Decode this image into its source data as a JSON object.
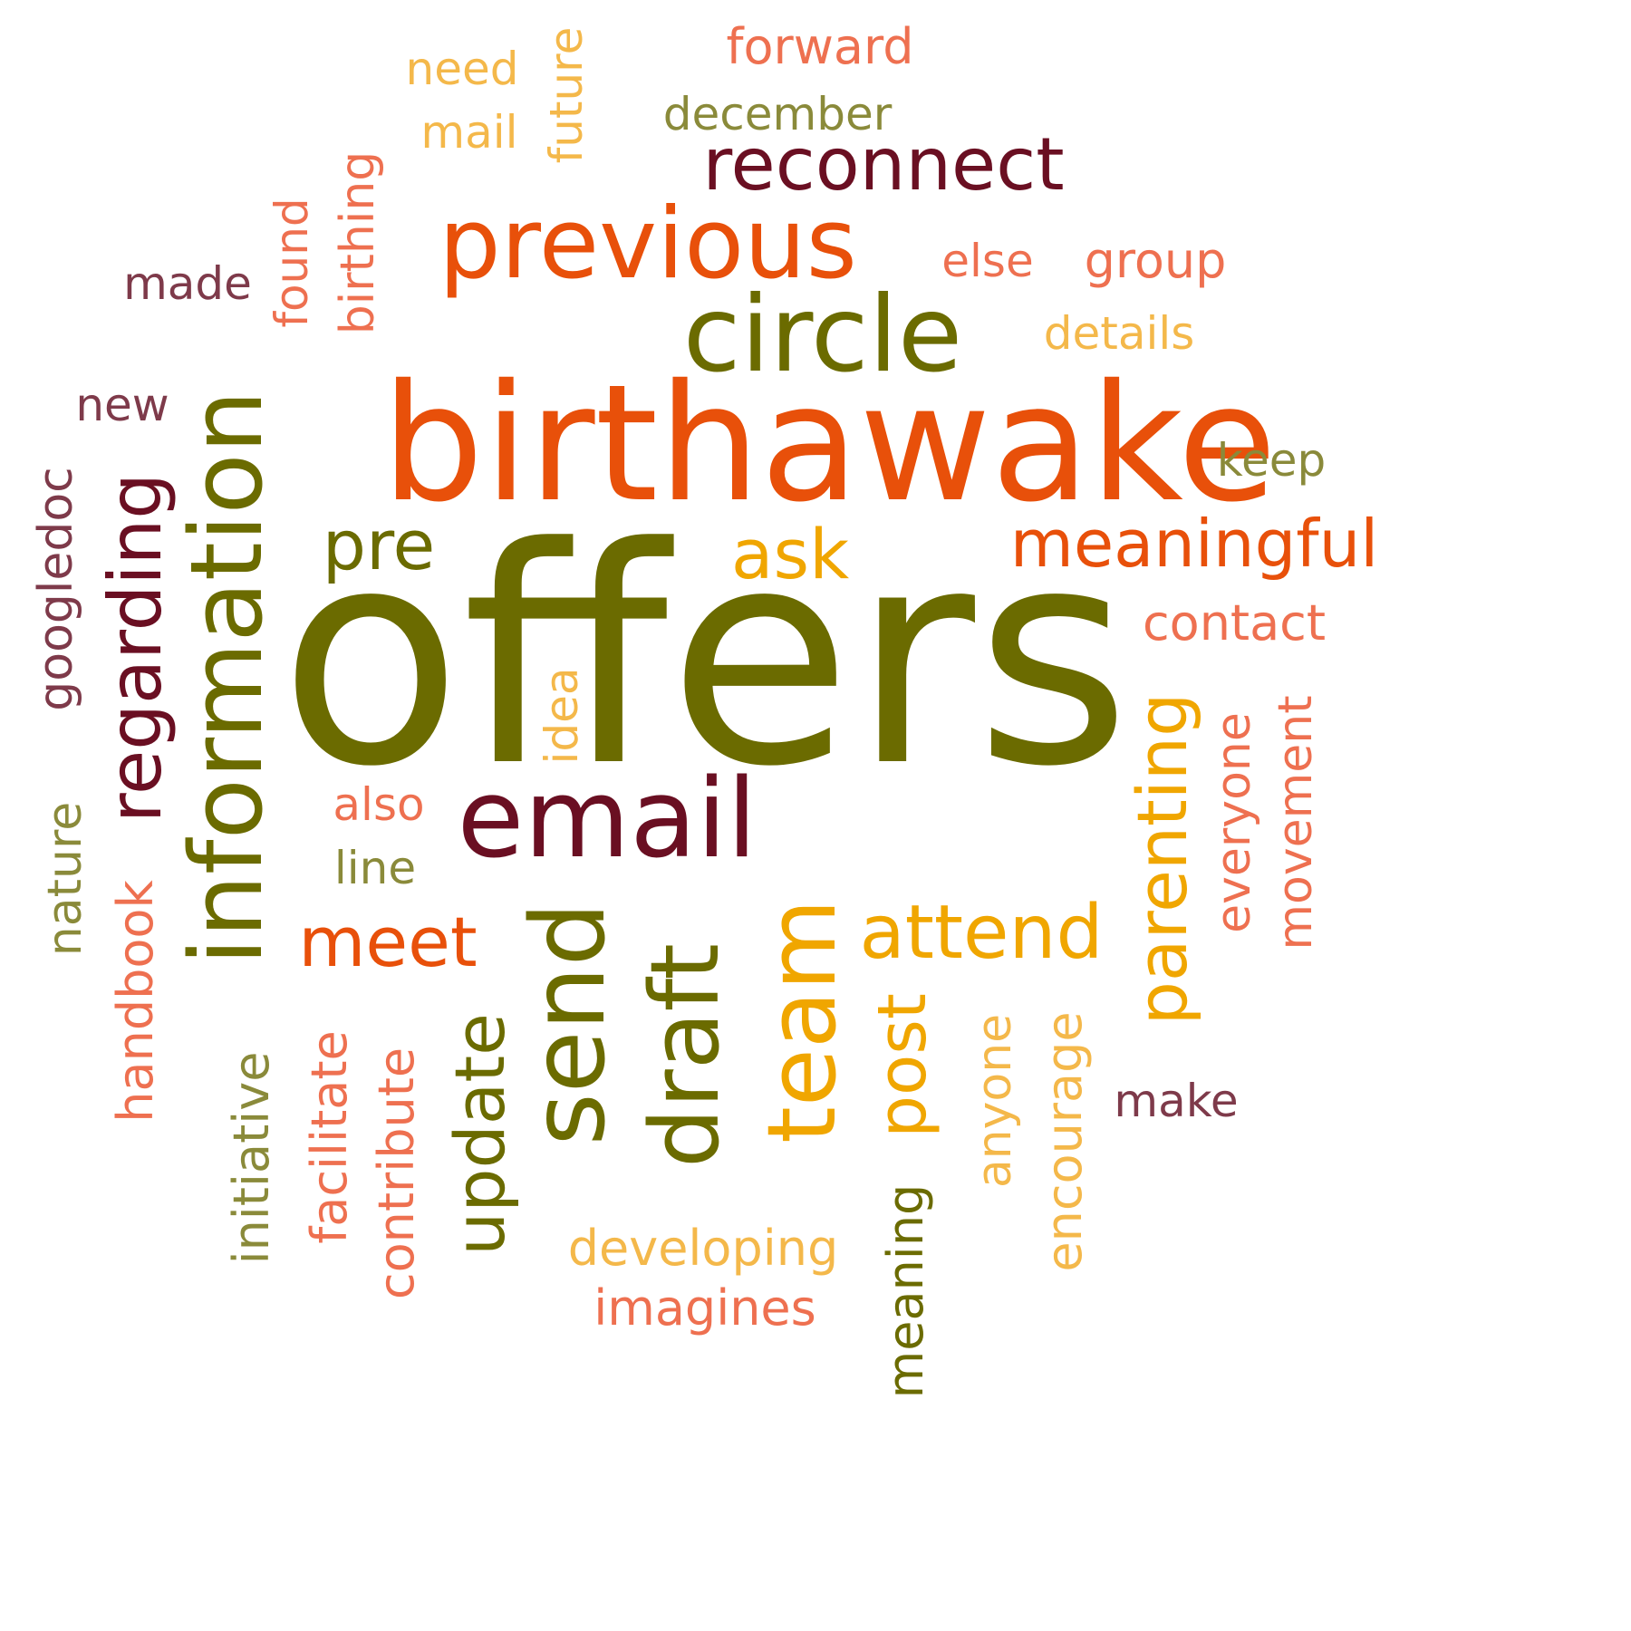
{
  "palette": {
    "olive": "#6b6b00",
    "orange": "#e8500a",
    "maroon": "#6a0f22",
    "gold": "#f0a600",
    "light_gold": "#f4b84a",
    "salmon": "#ee7050",
    "plum": "#7e3a4a",
    "sage": "#8a8a3a"
  },
  "words": [
    {
      "text": "offers",
      "color_key": "olive",
      "weight": 1.0,
      "vertical": false
    },
    {
      "text": "birthawake",
      "color_key": "orange",
      "weight": 0.62,
      "vertical": false
    },
    {
      "text": "email",
      "color_key": "maroon",
      "weight": 0.38,
      "vertical": false
    },
    {
      "text": "circle",
      "color_key": "olive",
      "weight": 0.36,
      "vertical": false
    },
    {
      "text": "previous",
      "color_key": "orange",
      "weight": 0.34,
      "vertical": false
    },
    {
      "text": "information",
      "color_key": "olive",
      "weight": 0.34,
      "vertical": true
    },
    {
      "text": "send",
      "color_key": "olive",
      "weight": 0.34,
      "vertical": true
    },
    {
      "text": "draft",
      "color_key": "olive",
      "weight": 0.32,
      "vertical": true
    },
    {
      "text": "team",
      "color_key": "gold",
      "weight": 0.32,
      "vertical": true
    },
    {
      "text": "reconnect",
      "color_key": "maroon",
      "weight": 0.26,
      "vertical": false
    },
    {
      "text": "regarding",
      "color_key": "maroon",
      "weight": 0.26,
      "vertical": true
    },
    {
      "text": "attend",
      "color_key": "gold",
      "weight": 0.26,
      "vertical": false
    },
    {
      "text": "meaningful",
      "color_key": "orange",
      "weight": 0.24,
      "vertical": false
    },
    {
      "text": "parenting",
      "color_key": "gold",
      "weight": 0.24,
      "vertical": true
    },
    {
      "text": "update",
      "color_key": "olive",
      "weight": 0.24,
      "vertical": true
    },
    {
      "text": "meet",
      "color_key": "orange",
      "weight": 0.22,
      "vertical": false
    },
    {
      "text": "post",
      "color_key": "gold",
      "weight": 0.22,
      "vertical": true
    },
    {
      "text": "ask",
      "color_key": "gold",
      "weight": 0.22,
      "vertical": false
    },
    {
      "text": "pre",
      "color_key": "olive",
      "weight": 0.22,
      "vertical": false
    },
    {
      "text": "forward",
      "color_key": "salmon",
      "weight": 0.17,
      "vertical": false
    },
    {
      "text": "developing",
      "color_key": "light_gold",
      "weight": 0.17,
      "vertical": false
    },
    {
      "text": "imagines",
      "color_key": "salmon",
      "weight": 0.17,
      "vertical": false
    },
    {
      "text": "contact",
      "color_key": "salmon",
      "weight": 0.17,
      "vertical": false
    },
    {
      "text": "group",
      "color_key": "salmon",
      "weight": 0.17,
      "vertical": false
    },
    {
      "text": "handbook",
      "color_key": "salmon",
      "weight": 0.17,
      "vertical": true
    },
    {
      "text": "contribute",
      "color_key": "salmon",
      "weight": 0.17,
      "vertical": true
    },
    {
      "text": "facilitate",
      "color_key": "salmon",
      "weight": 0.17,
      "vertical": true
    },
    {
      "text": "initiative",
      "color_key": "sage",
      "weight": 0.17,
      "vertical": true
    },
    {
      "text": "meaning",
      "color_key": "olive",
      "weight": 0.17,
      "vertical": true
    },
    {
      "text": "encourage",
      "color_key": "light_gold",
      "weight": 0.17,
      "vertical": true
    },
    {
      "text": "anyone",
      "color_key": "light_gold",
      "weight": 0.17,
      "vertical": true
    },
    {
      "text": "everyone",
      "color_key": "salmon",
      "weight": 0.17,
      "vertical": true
    },
    {
      "text": "movement",
      "color_key": "salmon",
      "weight": 0.17,
      "vertical": true
    },
    {
      "text": "googledoc",
      "color_key": "plum",
      "weight": 0.17,
      "vertical": true
    },
    {
      "text": "nature",
      "color_key": "sage",
      "weight": 0.17,
      "vertical": true
    },
    {
      "text": "birthing",
      "color_key": "salmon",
      "weight": 0.17,
      "vertical": true
    },
    {
      "text": "future",
      "color_key": "light_gold",
      "weight": 0.17,
      "vertical": true
    },
    {
      "text": "found",
      "color_key": "salmon",
      "weight": 0.17,
      "vertical": true
    },
    {
      "text": "idea",
      "color_key": "light_gold",
      "weight": 0.17,
      "vertical": true
    },
    {
      "text": "december",
      "color_key": "sage",
      "weight": 0.16,
      "vertical": false
    },
    {
      "text": "details",
      "color_key": "light_gold",
      "weight": 0.16,
      "vertical": false
    },
    {
      "text": "keep",
      "color_key": "sage",
      "weight": 0.16,
      "vertical": false
    },
    {
      "text": "else",
      "color_key": "salmon",
      "weight": 0.16,
      "vertical": false
    },
    {
      "text": "made",
      "color_key": "plum",
      "weight": 0.16,
      "vertical": false
    },
    {
      "text": "new",
      "color_key": "plum",
      "weight": 0.16,
      "vertical": false
    },
    {
      "text": "need",
      "color_key": "light_gold",
      "weight": 0.16,
      "vertical": false
    },
    {
      "text": "mail",
      "color_key": "light_gold",
      "weight": 0.16,
      "vertical": false
    },
    {
      "text": "also",
      "color_key": "salmon",
      "weight": 0.16,
      "vertical": false
    },
    {
      "text": "line",
      "color_key": "sage",
      "weight": 0.16,
      "vertical": false
    },
    {
      "text": "make",
      "color_key": "plum",
      "weight": 0.16,
      "vertical": false
    }
  ]
}
